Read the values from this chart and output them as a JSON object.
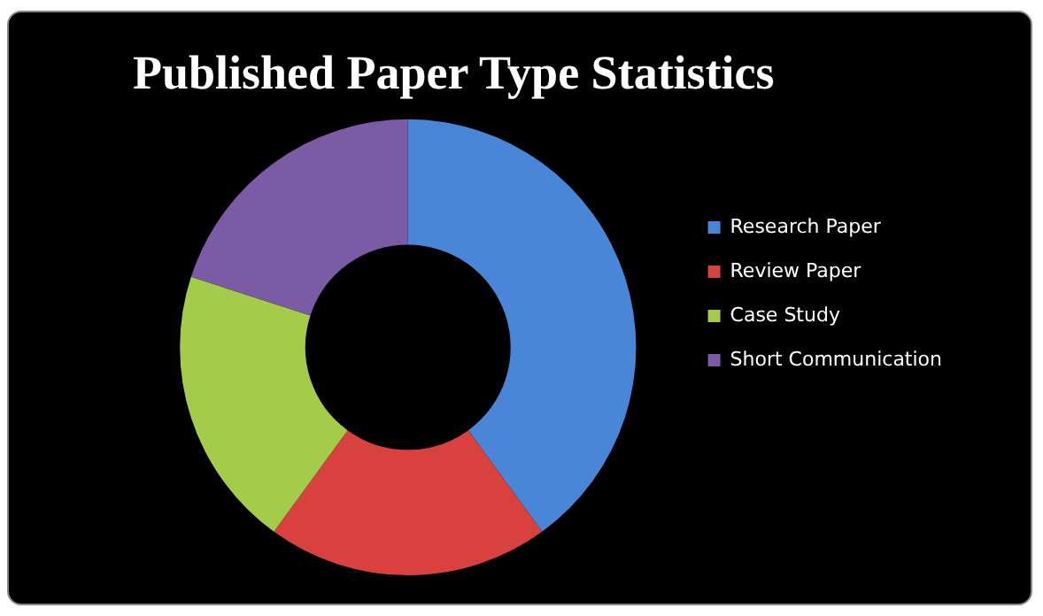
{
  "chart_data": {
    "type": "donut",
    "title": "Published Paper Type Statistics",
    "categories": [
      "Research Paper",
      "Review Paper",
      "Case Study",
      "Short Communication"
    ],
    "values": [
      40,
      20,
      20,
      20
    ],
    "colors": [
      "#4a86d8",
      "#d9413f",
      "#a4cc4a",
      "#7b5aa6"
    ],
    "legend": "right"
  }
}
